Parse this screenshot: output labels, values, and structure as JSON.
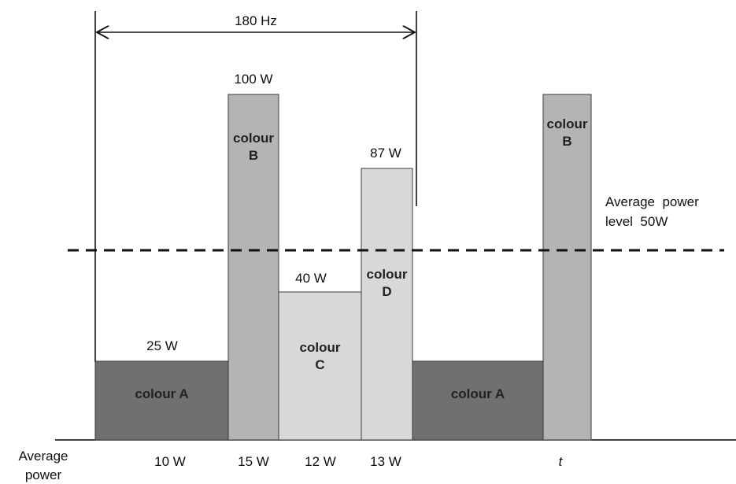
{
  "period_label": "180 Hz",
  "average_line_label": [
    "Average  power",
    "level  50W"
  ],
  "colors": {
    "colour_a": "#707070",
    "colour_b": "#b4b4b4",
    "colour_c": "#d8d8d8",
    "colour_d": "#d8d8d8",
    "outline": "#3a3a3a",
    "baseline": "#000000"
  },
  "segments": [
    {
      "id": "a1",
      "peak_label": "25 W",
      "name_lines": [
        "colour A"
      ],
      "avg_label": "10 W",
      "color_key": "colour_a"
    },
    {
      "id": "b1",
      "peak_label": "100 W",
      "name_lines": [
        "colour",
        "B"
      ],
      "avg_label": "15 W",
      "color_key": "colour_b"
    },
    {
      "id": "c",
      "peak_label": "40 W",
      "name_lines": [
        "colour",
        "C"
      ],
      "avg_label": "12 W",
      "color_key": "colour_c"
    },
    {
      "id": "d",
      "peak_label": "87 W",
      "name_lines": [
        "colour",
        "D"
      ],
      "avg_label": "13 W",
      "color_key": "colour_d"
    },
    {
      "id": "a2",
      "peak_label": "",
      "name_lines": [
        "colour A"
      ],
      "avg_label": "",
      "color_key": "colour_a"
    },
    {
      "id": "b2",
      "peak_label": "",
      "name_lines": [
        "colour",
        "B"
      ],
      "avg_label": "t",
      "color_key": "colour_b"
    }
  ],
  "axis_label": [
    "Average",
    "power"
  ]
}
